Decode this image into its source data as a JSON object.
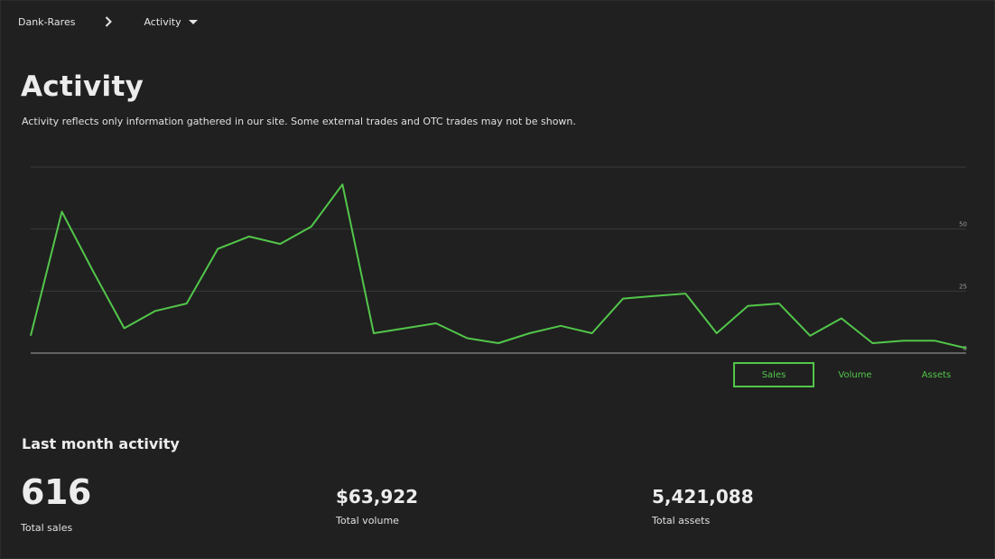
{
  "breadcrumb": {
    "root": "Dank-Rares",
    "current": "Activity"
  },
  "page": {
    "title": "Activity",
    "subtitle": "Activity reflects only information gathered in our site. Some external trades and OTC trades may not be shown."
  },
  "chart_data": {
    "type": "line",
    "y_ticks": [
      0,
      25,
      50
    ],
    "ylim": [
      0,
      75
    ],
    "grid": true,
    "line_color": "#52c64a",
    "series": [
      {
        "values": [
          7,
          57,
          33,
          10,
          17,
          20,
          42,
          47,
          44,
          51,
          68,
          8,
          10,
          12,
          6,
          4,
          8,
          11,
          8,
          22,
          23,
          24,
          8,
          19,
          20,
          7,
          14,
          4,
          5,
          5,
          2
        ]
      }
    ]
  },
  "metric_tabs": [
    {
      "label": "Sales",
      "active": true
    },
    {
      "label": "Volume",
      "active": false
    },
    {
      "label": "Assets",
      "active": false
    }
  ],
  "last_month": {
    "title": "Last month activity",
    "sales": {
      "value": "616",
      "label": "Total sales"
    },
    "volume": {
      "value": "$63,922",
      "label": "Total volume"
    },
    "assets": {
      "value": "5,421,088",
      "label": "Total assets"
    }
  },
  "colors": {
    "background": "#202020",
    "accent": "#52c64a",
    "grid": "#3a3a3a",
    "axis": "#8a8a8a"
  }
}
